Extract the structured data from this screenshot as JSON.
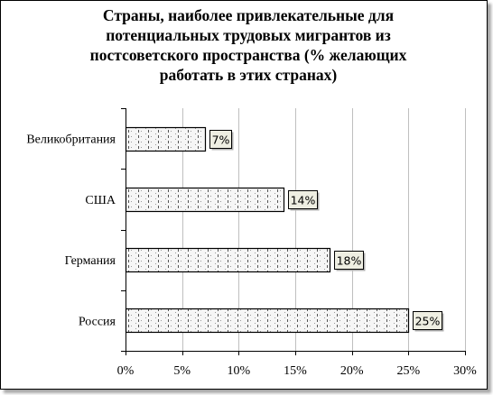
{
  "chart_data": {
    "type": "bar",
    "orientation": "horizontal",
    "title": "Страны, наиболее привлекательные для потенциальных трудовых мигрантов из постсоветского пространства (% желающих работать в этих странах)",
    "title_lines": [
      "Страны, наиболее привлекательные для",
      "потенциальных трудовых мигрантов из",
      "постсоветского пространства (% желающих",
      "работать в этих странах)"
    ],
    "categories": [
      "Великобритания",
      "США",
      "Германия",
      "Россия"
    ],
    "values": [
      7,
      14,
      18,
      25
    ],
    "data_labels": [
      "7%",
      "14%",
      "18%",
      "25%"
    ],
    "xlim": [
      0,
      30
    ],
    "x_ticks": [
      0,
      5,
      10,
      15,
      20,
      25,
      30
    ],
    "x_tick_labels": [
      "0%",
      "5%",
      "10%",
      "15%",
      "20%",
      "25%",
      "30%"
    ],
    "xlabel": "",
    "ylabel": "",
    "grid": true,
    "legend": "none",
    "colors": {
      "bar_fill": "#f6f6f6",
      "bar_pattern": "#555555",
      "grid": "#bfbfbf",
      "label_box": "#eeeee2"
    }
  }
}
